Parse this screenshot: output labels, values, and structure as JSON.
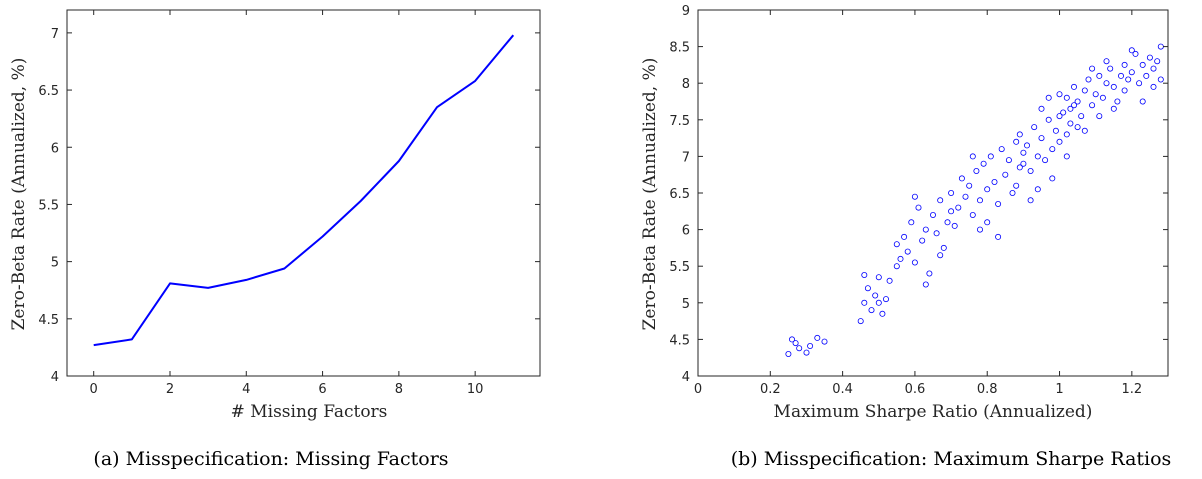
{
  "chart_data": [
    {
      "type": "line",
      "caption": "(a)  Misspecification: Missing Factors",
      "xlabel": "# Missing Factors",
      "ylabel": "Zero-Beta Rate (Annualized, %)",
      "xlim": [
        -0.7,
        11.7
      ],
      "ylim": [
        4,
        7.2
      ],
      "xticks": [
        "0",
        "2",
        "4",
        "6",
        "8",
        "10"
      ],
      "yticks": [
        "4",
        "4.5",
        "5",
        "5.5",
        "6",
        "6.5",
        "7"
      ],
      "grid": false,
      "color": "#0000ff",
      "x": [
        0,
        1,
        2,
        3,
        4,
        5,
        6,
        7,
        8,
        9,
        10,
        11
      ],
      "y": [
        4.27,
        4.32,
        4.81,
        4.77,
        4.84,
        4.94,
        5.22,
        5.53,
        5.88,
        6.35,
        6.58,
        6.98
      ]
    },
    {
      "type": "scatter",
      "caption": "(b)  Misspecification: Maximum Sharpe Ratios",
      "xlabel": "Maximum Sharpe Ratio (Annualized)",
      "ylabel": "Zero-Beta Rate (Annualized, %)",
      "xlim": [
        0,
        1.3
      ],
      "ylim": [
        4,
        9
      ],
      "xticks": [
        "0",
        "0.2",
        "0.4",
        "0.6",
        "0.8",
        "1",
        "1.2"
      ],
      "yticks": [
        "4",
        "4.5",
        "5",
        "5.5",
        "6",
        "6.5",
        "7",
        "7.5",
        "8",
        "8.5",
        "9"
      ],
      "grid": false,
      "color": "#0000ff",
      "marker": "open-circle",
      "points": [
        [
          0.25,
          4.3
        ],
        [
          0.27,
          4.45
        ],
        [
          0.28,
          4.38
        ],
        [
          0.3,
          4.32
        ],
        [
          0.33,
          4.52
        ],
        [
          0.35,
          4.47
        ],
        [
          0.26,
          4.5
        ],
        [
          0.31,
          4.41
        ],
        [
          0.45,
          4.75
        ],
        [
          0.46,
          5.0
        ],
        [
          0.47,
          5.2
        ],
        [
          0.48,
          4.9
        ],
        [
          0.49,
          5.1
        ],
        [
          0.5,
          5.35
        ],
        [
          0.51,
          4.85
        ],
        [
          0.52,
          5.05
        ],
        [
          0.53,
          5.3
        ],
        [
          0.55,
          5.5
        ],
        [
          0.46,
          5.38
        ],
        [
          0.5,
          5.0
        ],
        [
          0.55,
          5.8
        ],
        [
          0.56,
          5.6
        ],
        [
          0.57,
          5.9
        ],
        [
          0.58,
          5.7
        ],
        [
          0.59,
          6.1
        ],
        [
          0.6,
          5.55
        ],
        [
          0.61,
          6.3
        ],
        [
          0.62,
          5.85
        ],
        [
          0.63,
          6.0
        ],
        [
          0.64,
          5.4
        ],
        [
          0.65,
          6.2
        ],
        [
          0.66,
          5.95
        ],
        [
          0.67,
          6.4
        ],
        [
          0.68,
          5.75
        ],
        [
          0.69,
          6.1
        ],
        [
          0.7,
          6.25
        ],
        [
          0.6,
          6.45
        ],
        [
          0.63,
          5.25
        ],
        [
          0.67,
          5.65
        ],
        [
          0.71,
          6.05
        ],
        [
          0.7,
          6.5
        ],
        [
          0.72,
          6.3
        ],
        [
          0.73,
          6.7
        ],
        [
          0.74,
          6.45
        ],
        [
          0.75,
          6.6
        ],
        [
          0.76,
          6.2
        ],
        [
          0.77,
          6.8
        ],
        [
          0.78,
          6.4
        ],
        [
          0.79,
          6.9
        ],
        [
          0.8,
          6.55
        ],
        [
          0.81,
          7.0
        ],
        [
          0.82,
          6.65
        ],
        [
          0.83,
          6.35
        ],
        [
          0.84,
          7.1
        ],
        [
          0.85,
          6.75
        ],
        [
          0.86,
          6.95
        ],
        [
          0.87,
          6.5
        ],
        [
          0.88,
          7.2
        ],
        [
          0.89,
          6.85
        ],
        [
          0.9,
          7.05
        ],
        [
          0.8,
          6.1
        ],
        [
          0.76,
          7.0
        ],
        [
          0.83,
          5.9
        ],
        [
          0.78,
          6.0
        ],
        [
          0.88,
          6.6
        ],
        [
          0.89,
          7.3
        ],
        [
          0.9,
          6.9
        ],
        [
          0.91,
          7.15
        ],
        [
          0.92,
          6.8
        ],
        [
          0.93,
          7.4
        ],
        [
          0.94,
          7.0
        ],
        [
          0.95,
          7.25
        ],
        [
          0.96,
          6.95
        ],
        [
          0.97,
          7.5
        ],
        [
          0.98,
          7.1
        ],
        [
          0.99,
          7.35
        ],
        [
          1.0,
          7.2
        ],
        [
          1.01,
          7.6
        ],
        [
          1.02,
          7.3
        ],
        [
          1.03,
          7.45
        ],
        [
          1.04,
          7.7
        ],
        [
          1.05,
          7.4
        ],
        [
          0.92,
          6.4
        ],
        [
          0.95,
          7.65
        ],
        [
          0.98,
          6.7
        ],
        [
          1.0,
          7.85
        ],
        [
          0.94,
          6.55
        ],
        [
          0.97,
          7.8
        ],
        [
          1.02,
          7.0
        ],
        [
          1.0,
          7.55
        ],
        [
          1.02,
          7.8
        ],
        [
          1.03,
          7.65
        ],
        [
          1.04,
          7.95
        ],
        [
          1.05,
          7.75
        ],
        [
          1.06,
          7.55
        ],
        [
          1.07,
          7.9
        ],
        [
          1.08,
          8.05
        ],
        [
          1.09,
          7.7
        ],
        [
          1.1,
          7.85
        ],
        [
          1.11,
          8.1
        ],
        [
          1.12,
          7.8
        ],
        [
          1.13,
          8.0
        ],
        [
          1.14,
          8.2
        ],
        [
          1.15,
          7.95
        ],
        [
          1.16,
          7.75
        ],
        [
          1.17,
          8.1
        ],
        [
          1.18,
          8.25
        ],
        [
          1.07,
          7.35
        ],
        [
          1.09,
          8.2
        ],
        [
          1.11,
          7.55
        ],
        [
          1.13,
          8.3
        ],
        [
          1.15,
          7.65
        ],
        [
          1.18,
          7.9
        ],
        [
          1.19,
          8.05
        ],
        [
          1.2,
          8.15
        ],
        [
          1.21,
          8.4
        ],
        [
          1.22,
          8.0
        ],
        [
          1.23,
          8.25
        ],
        [
          1.24,
          8.1
        ],
        [
          1.25,
          8.35
        ],
        [
          1.26,
          8.2
        ],
        [
          1.27,
          8.3
        ],
        [
          1.28,
          8.5
        ],
        [
          1.28,
          8.05
        ],
        [
          1.23,
          7.75
        ],
        [
          1.2,
          8.45
        ],
        [
          1.26,
          7.95
        ]
      ]
    }
  ]
}
